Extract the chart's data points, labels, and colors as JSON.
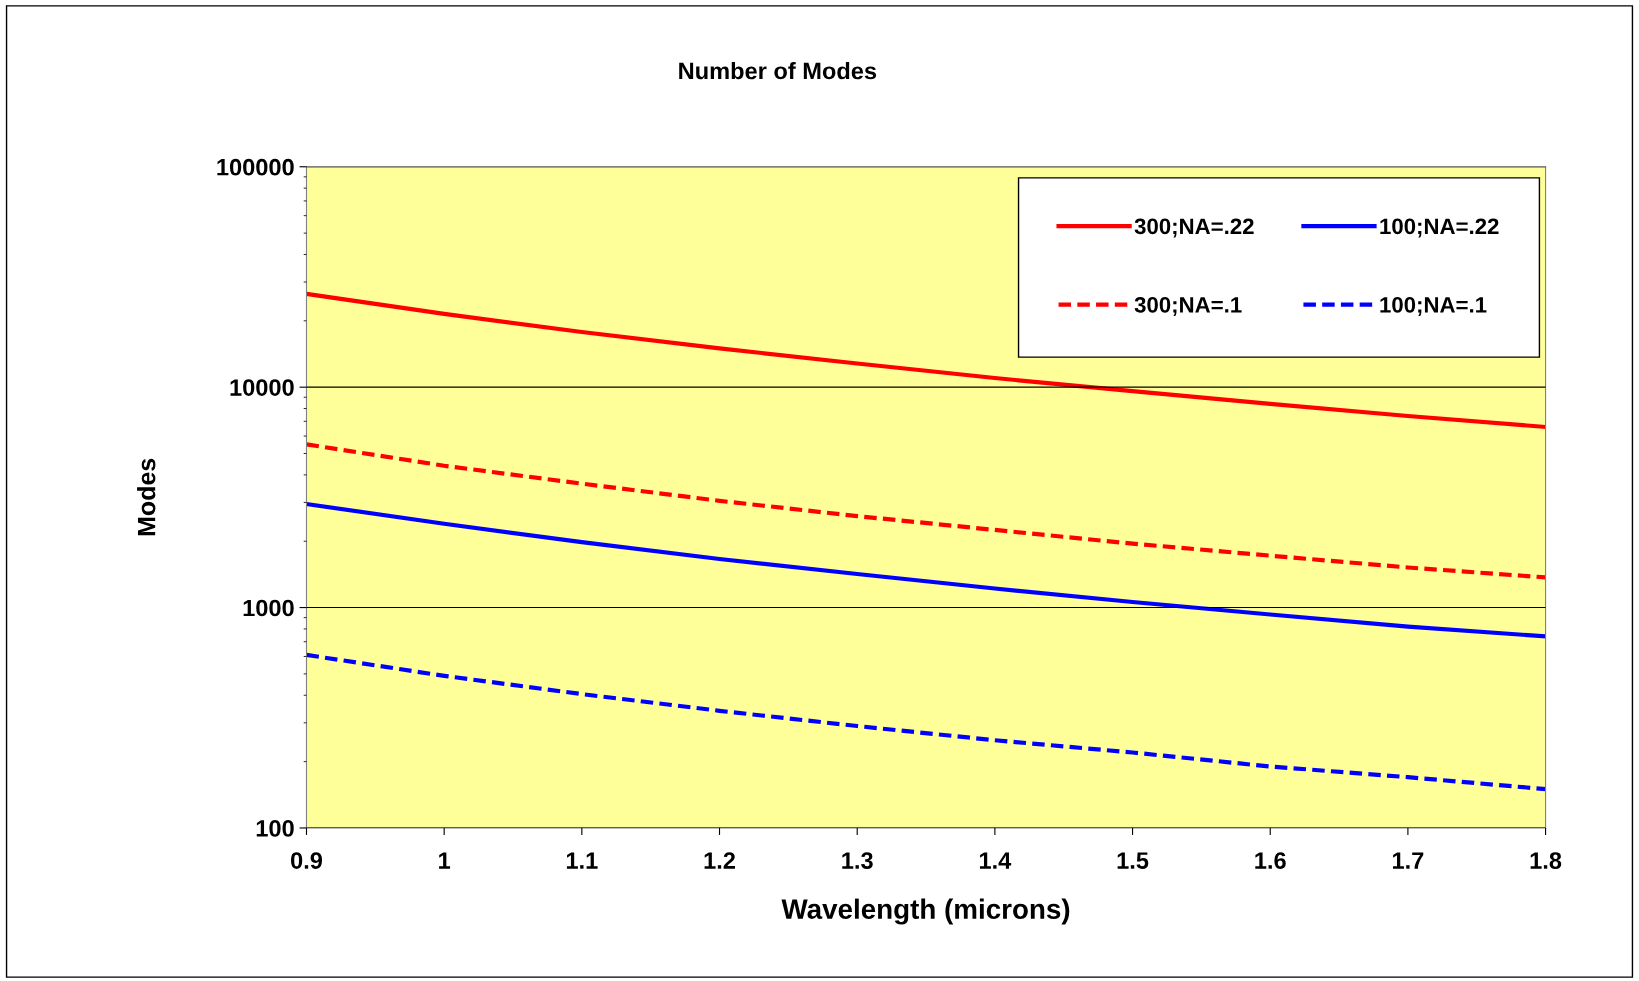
{
  "chart_data": {
    "type": "line",
    "title": "Number of Modes",
    "xlabel": "Wavelength (microns)",
    "ylabel": "Modes",
    "x": [
      0.9,
      1.0,
      1.1,
      1.2,
      1.3,
      1.4,
      1.5,
      1.6,
      1.7,
      1.8
    ],
    "series": [
      {
        "name": "300;NA=.22",
        "color": "#ff0000",
        "line_style": "solid",
        "values": [
          26500,
          21500,
          17800,
          15000,
          12800,
          11000,
          9600,
          8400,
          7400,
          6600
        ]
      },
      {
        "name": "300;NA=.1",
        "color": "#ff0000",
        "line_style": "dashed",
        "values": [
          5500,
          4400,
          3650,
          3050,
          2600,
          2250,
          1950,
          1720,
          1520,
          1370
        ]
      },
      {
        "name": "100;NA=.22",
        "color": "#0000ff",
        "line_style": "solid",
        "values": [
          2950,
          2400,
          1980,
          1660,
          1420,
          1220,
          1060,
          930,
          820,
          740
        ]
      },
      {
        "name": "100;NA=.1",
        "color": "#0000ff",
        "line_style": "dashed",
        "values": [
          610,
          490,
          405,
          340,
          290,
          250,
          220,
          190,
          170,
          150
        ]
      }
    ],
    "log": "y",
    "xlim": [
      0.9,
      1.8
    ],
    "xticks": [
      0.9,
      1,
      1.1,
      1.2,
      1.3,
      1.4,
      1.5,
      1.6,
      1.7,
      1.8
    ],
    "ylim": [
      100,
      100000
    ],
    "yticks": [
      100,
      1000,
      10000,
      100000
    ],
    "grid": "y",
    "legend": "top right",
    "marker": "none"
  }
}
